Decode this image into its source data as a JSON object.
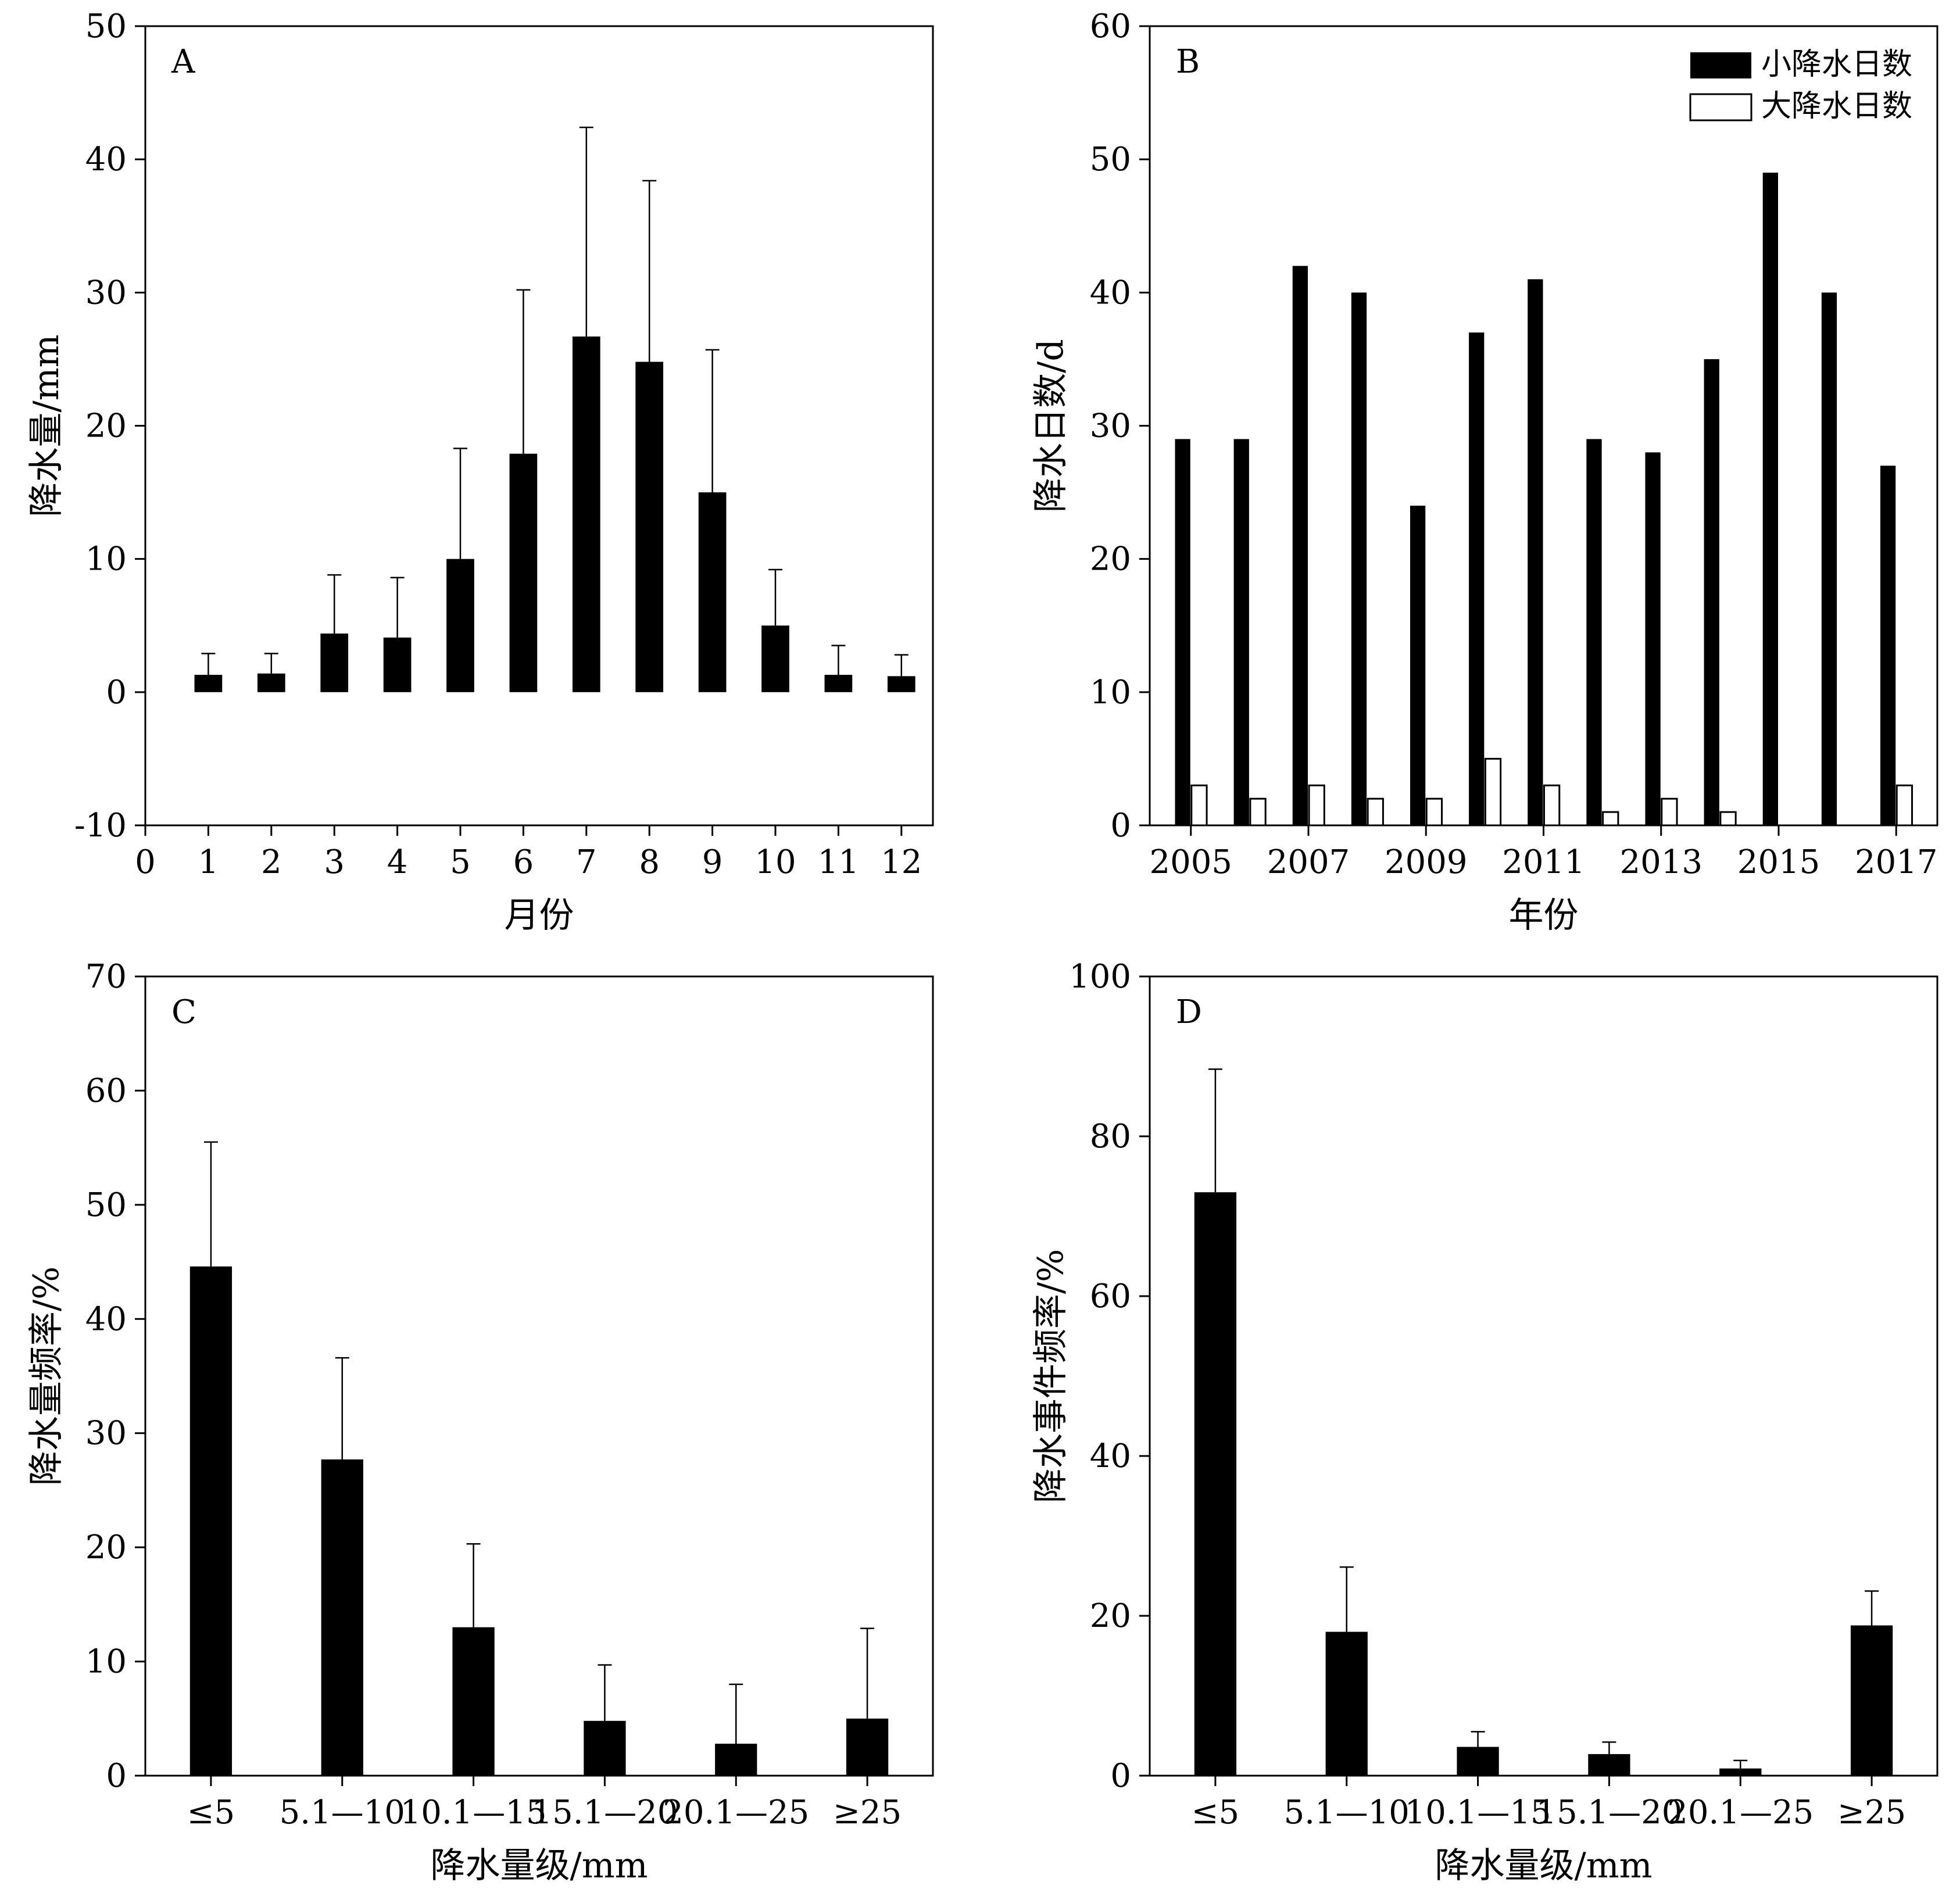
{
  "chart_data": [
    {
      "panel": "A",
      "type": "bar",
      "xlabel": "月份",
      "ylabel": "降水量/mm",
      "xlim": [
        0,
        12.5
      ],
      "xticks": [
        "0",
        "1",
        "2",
        "3",
        "4",
        "5",
        "6",
        "7",
        "8",
        "9",
        "10",
        "11",
        "12"
      ],
      "ylim": [
        -10,
        50
      ],
      "yticks": [
        "-10",
        "0",
        "10",
        "20",
        "30",
        "40",
        "50"
      ],
      "categories": [
        "1",
        "2",
        "3",
        "4",
        "5",
        "6",
        "7",
        "8",
        "9",
        "10",
        "11",
        "12"
      ],
      "values": [
        1.3,
        1.4,
        4.4,
        4.1,
        10.0,
        17.9,
        26.7,
        24.8,
        15.0,
        5.0,
        1.3,
        1.2
      ],
      "errors": [
        1.6,
        1.5,
        4.4,
        4.5,
        8.3,
        12.3,
        15.7,
        13.6,
        10.7,
        4.2,
        2.2,
        1.6
      ]
    },
    {
      "panel": "B",
      "type": "bar",
      "xlabel": "年份",
      "ylabel": "降水日数/d",
      "ylim": [
        0,
        60
      ],
      "yticks": [
        "0",
        "10",
        "20",
        "30",
        "40",
        "50",
        "60"
      ],
      "categories": [
        "2005",
        "2006",
        "2007",
        "2008",
        "2009",
        "2010",
        "2011",
        "2012",
        "2013",
        "2014",
        "2015",
        "2016",
        "2017"
      ],
      "xtick_labels": [
        "2005",
        "2007",
        "2009",
        "2011",
        "2013",
        "2015",
        "2017"
      ],
      "legend_position": "top-right",
      "series": [
        {
          "name": "小降水日数",
          "color": "#000000",
          "values": [
            29,
            29,
            42,
            40,
            24,
            37,
            41,
            29,
            28,
            35,
            49,
            40,
            27
          ]
        },
        {
          "name": "大降水日数",
          "color": "#ffffff",
          "values": [
            3,
            2,
            3,
            2,
            2,
            5,
            3,
            1,
            2,
            1,
            0,
            0,
            3
          ]
        }
      ]
    },
    {
      "panel": "C",
      "type": "bar",
      "xlabel": "降水量级/mm",
      "ylabel": "降水量频率/%",
      "ylim": [
        0,
        70
      ],
      "yticks": [
        "0",
        "10",
        "20",
        "30",
        "40",
        "50",
        "60",
        "70"
      ],
      "categories": [
        "≤5",
        "5.1—10",
        "10.1—15",
        "15.1—20",
        "20.1—25",
        "≥25"
      ],
      "values": [
        44.6,
        27.7,
        13.0,
        4.8,
        2.8,
        5.0
      ],
      "errors": [
        10.9,
        8.9,
        7.3,
        4.9,
        5.2,
        7.9
      ]
    },
    {
      "panel": "D",
      "type": "bar",
      "xlabel": "降水量级/mm",
      "ylabel": "降水事件频率/%",
      "ylim": [
        0,
        100
      ],
      "yticks": [
        "0",
        "20",
        "40",
        "60",
        "80",
        "100"
      ],
      "categories": [
        "≤5",
        "5.1—10",
        "10.1—15",
        "15.1—20",
        "20.1—25",
        "≥25"
      ],
      "values": [
        73.0,
        18.0,
        3.6,
        2.7,
        0.9,
        18.8
      ],
      "errors": [
        15.4,
        8.1,
        1.9,
        1.5,
        1.0,
        4.3
      ]
    }
  ]
}
